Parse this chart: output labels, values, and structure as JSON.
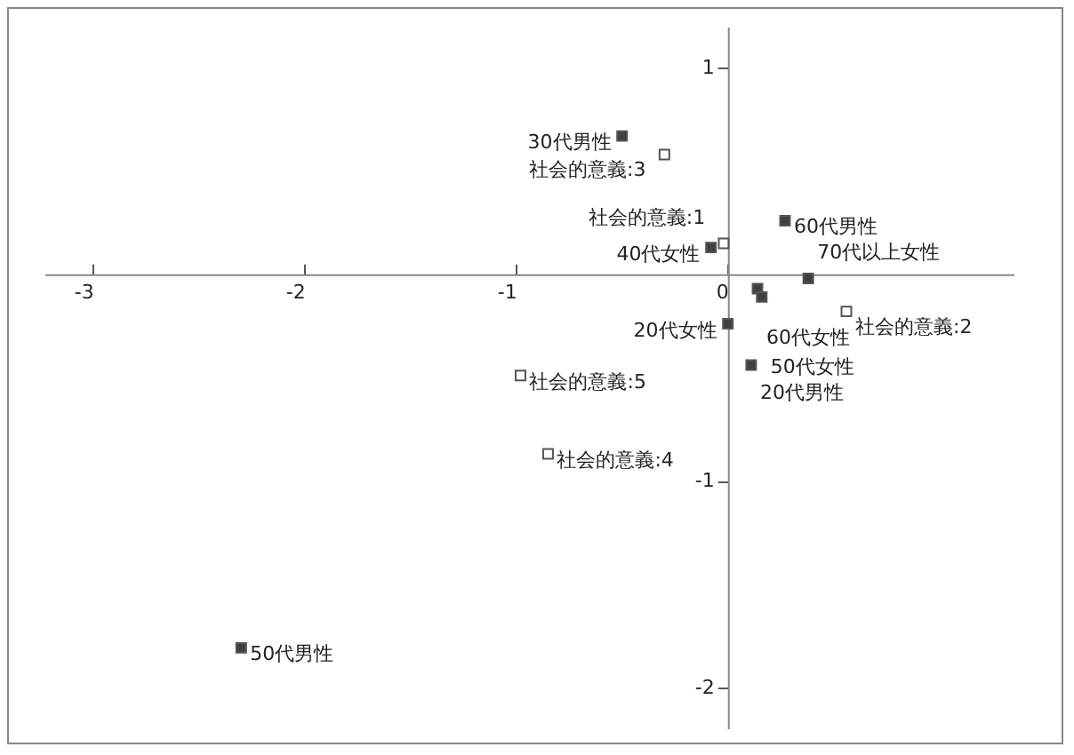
{
  "chart_data": {
    "type": "scatter",
    "xlim": [
      -3.23,
      1.35
    ],
    "ylim": [
      -2.2,
      1.2
    ],
    "xticks": [
      -3,
      -2,
      -1,
      0
    ],
    "yticks": [
      -2,
      -1,
      1
    ],
    "grid": false,
    "marker": "square",
    "series": [
      {
        "color": "#404040",
        "x": [
          -0.5,
          0.27,
          -0.08,
          0.38,
          0.14,
          0.16,
          0.0,
          0.11,
          -2.3
        ],
        "values": [
          0.67,
          0.26,
          0.13,
          -0.02,
          -0.07,
          -0.11,
          -0.24,
          -0.44,
          -1.81
        ]
      },
      {
        "color": "#ffffff",
        "x": [
          -0.3,
          -0.02,
          0.56,
          -0.98,
          -0.85
        ],
        "values": [
          0.58,
          0.15,
          -0.18,
          -0.49,
          -0.87
        ]
      }
    ],
    "annotations": [
      {
        "text": "30代男性",
        "x": -0.5,
        "y": 0.67
      },
      {
        "text": "60代男性",
        "x": 0.27,
        "y": 0.26
      },
      {
        "text": "40代女性",
        "x": -0.08,
        "y": 0.13
      },
      {
        "text": "70代以上女性",
        "x": 0.38,
        "y": -0.02
      },
      {
        "text": "60代女性",
        "x": 0.14,
        "y": -0.07
      },
      {
        "text": "50代女性",
        "x": 0.16,
        "y": -0.11
      },
      {
        "text": "20代女性",
        "x": 0.0,
        "y": -0.24
      },
      {
        "text": "20代男性",
        "x": 0.11,
        "y": -0.44
      },
      {
        "text": "50代男性",
        "x": -2.3,
        "y": -1.81
      },
      {
        "text": "社会的意義:3",
        "x": -0.3,
        "y": 0.58
      },
      {
        "text": "社会的意義:1",
        "x": -0.02,
        "y": 0.15
      },
      {
        "text": "社会的意義:2",
        "x": 0.56,
        "y": -0.18
      },
      {
        "text": "社会的意義:5",
        "x": -0.98,
        "y": -0.49
      },
      {
        "text": "社会的意義:4",
        "x": -0.85,
        "y": -0.87
      }
    ]
  }
}
